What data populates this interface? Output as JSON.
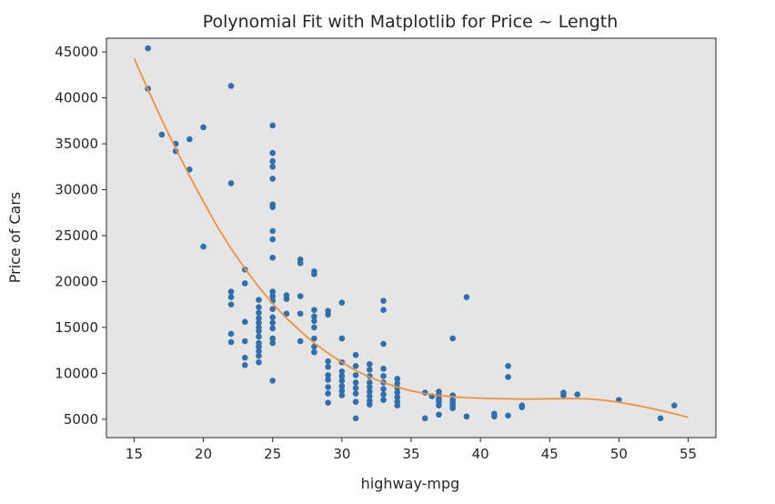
{
  "chart_data": {
    "type": "scatter",
    "title": "Polynomial Fit with Matplotlib for Price ~ Length",
    "xlabel": "highway-mpg",
    "ylabel": "Price of Cars",
    "xlim": [
      13,
      57
    ],
    "ylim": [
      3000,
      46500
    ],
    "xticks": [
      15,
      20,
      25,
      30,
      35,
      40,
      45,
      50,
      55
    ],
    "xtick_labels": [
      "15",
      "20",
      "25",
      "30",
      "35",
      "40",
      "45",
      "50",
      "55"
    ],
    "yticks": [
      5000,
      10000,
      15000,
      20000,
      25000,
      30000,
      35000,
      40000,
      45000
    ],
    "ytick_labels": [
      "5000",
      "10000",
      "15000",
      "20000",
      "25000",
      "30000",
      "35000",
      "40000",
      "45000"
    ],
    "grid": false,
    "background": "#e5e5e5",
    "series": [
      {
        "kind": "scatter",
        "color": "#2f6fae",
        "points": [
          [
            16,
            45400
          ],
          [
            16,
            41000
          ],
          [
            17,
            36000
          ],
          [
            18,
            35000
          ],
          [
            18,
            34200
          ],
          [
            19,
            35500
          ],
          [
            19,
            32200
          ],
          [
            20,
            36800
          ],
          [
            20,
            23800
          ],
          [
            22,
            41300
          ],
          [
            22,
            30700
          ],
          [
            22,
            18900
          ],
          [
            22,
            18300
          ],
          [
            22,
            17500
          ],
          [
            22,
            14300
          ],
          [
            22,
            13400
          ],
          [
            23,
            21300
          ],
          [
            23,
            19800
          ],
          [
            23,
            15600
          ],
          [
            23,
            13500
          ],
          [
            23,
            11700
          ],
          [
            23,
            10900
          ],
          [
            24,
            18000
          ],
          [
            24,
            17200
          ],
          [
            24,
            16600
          ],
          [
            24,
            16000
          ],
          [
            24,
            15500
          ],
          [
            24,
            15000
          ],
          [
            24,
            14600
          ],
          [
            24,
            14000
          ],
          [
            24,
            13300
          ],
          [
            24,
            12900
          ],
          [
            24,
            12400
          ],
          [
            24,
            11900
          ],
          [
            24,
            11200
          ],
          [
            25,
            37000
          ],
          [
            25,
            34000
          ],
          [
            25,
            33100
          ],
          [
            25,
            32500
          ],
          [
            25,
            31200
          ],
          [
            25,
            28400
          ],
          [
            25,
            28100
          ],
          [
            25,
            25500
          ],
          [
            25,
            24600
          ],
          [
            25,
            22600
          ],
          [
            25,
            18900
          ],
          [
            25,
            18400
          ],
          [
            25,
            17900
          ],
          [
            25,
            17000
          ],
          [
            25,
            16100
          ],
          [
            25,
            15500
          ],
          [
            25,
            14900
          ],
          [
            25,
            13800
          ],
          [
            25,
            13300
          ],
          [
            25,
            9200
          ],
          [
            26,
            18500
          ],
          [
            26,
            18100
          ],
          [
            26,
            16500
          ],
          [
            27,
            22400
          ],
          [
            27,
            22000
          ],
          [
            27,
            18400
          ],
          [
            27,
            16500
          ],
          [
            27,
            13500
          ],
          [
            28,
            21100
          ],
          [
            28,
            20800
          ],
          [
            28,
            16900
          ],
          [
            28,
            16200
          ],
          [
            28,
            15700
          ],
          [
            28,
            15000
          ],
          [
            28,
            13800
          ],
          [
            28,
            12900
          ],
          [
            28,
            12300
          ],
          [
            29,
            16800
          ],
          [
            29,
            16400
          ],
          [
            29,
            11300
          ],
          [
            29,
            10700
          ],
          [
            29,
            9800
          ],
          [
            29,
            9300
          ],
          [
            29,
            8500
          ],
          [
            29,
            7800
          ],
          [
            29,
            6800
          ],
          [
            30,
            17700
          ],
          [
            30,
            13800
          ],
          [
            30,
            11200
          ],
          [
            30,
            10200
          ],
          [
            30,
            9700
          ],
          [
            30,
            9200
          ],
          [
            30,
            8600
          ],
          [
            30,
            8100
          ],
          [
            30,
            7600
          ],
          [
            31,
            12000
          ],
          [
            31,
            10800
          ],
          [
            31,
            9800
          ],
          [
            31,
            9000
          ],
          [
            31,
            8400
          ],
          [
            31,
            7800
          ],
          [
            31,
            6900
          ],
          [
            31,
            5100
          ],
          [
            32,
            11000
          ],
          [
            32,
            10400
          ],
          [
            32,
            9700
          ],
          [
            32,
            9000
          ],
          [
            32,
            8500
          ],
          [
            32,
            8000
          ],
          [
            32,
            7500
          ],
          [
            32,
            7000
          ],
          [
            32,
            6600
          ],
          [
            33,
            17900
          ],
          [
            33,
            16900
          ],
          [
            33,
            13200
          ],
          [
            33,
            10500
          ],
          [
            33,
            9700
          ],
          [
            33,
            9000
          ],
          [
            33,
            8300
          ],
          [
            33,
            7700
          ],
          [
            33,
            7100
          ],
          [
            34,
            9400
          ],
          [
            34,
            8900
          ],
          [
            34,
            8400
          ],
          [
            34,
            7900
          ],
          [
            34,
            7400
          ],
          [
            34,
            6900
          ],
          [
            34,
            6500
          ],
          [
            36,
            7900
          ],
          [
            36,
            5100
          ],
          [
            36.5,
            7500
          ],
          [
            37,
            8000
          ],
          [
            37,
            7600
          ],
          [
            37,
            7200
          ],
          [
            37,
            6900
          ],
          [
            37,
            6500
          ],
          [
            37,
            5500
          ],
          [
            38,
            13800
          ],
          [
            38,
            7600
          ],
          [
            38,
            7100
          ],
          [
            38,
            6800
          ],
          [
            38,
            6500
          ],
          [
            38,
            6200
          ],
          [
            39,
            18300
          ],
          [
            39,
            5300
          ],
          [
            41,
            5600
          ],
          [
            41,
            5300
          ],
          [
            42,
            10800
          ],
          [
            42,
            9600
          ],
          [
            42,
            5400
          ],
          [
            43,
            6500
          ],
          [
            43,
            6300
          ],
          [
            46,
            7900
          ],
          [
            46,
            7600
          ],
          [
            47,
            7700
          ],
          [
            50,
            7100
          ],
          [
            53,
            5100
          ],
          [
            54,
            6500
          ]
        ]
      },
      {
        "kind": "line",
        "color": "#f0913b",
        "x": [
          15,
          16,
          17,
          18,
          19,
          20,
          21,
          22,
          23,
          24,
          25,
          26,
          27,
          28,
          29,
          30,
          31,
          32,
          33,
          34,
          35,
          36,
          37,
          38,
          39,
          40,
          41,
          42,
          43,
          44,
          45,
          46,
          47,
          48,
          49,
          50,
          51,
          52,
          53,
          54,
          55
        ],
        "y": [
          44300,
          40900,
          37600,
          34500,
          31500,
          28700,
          26000,
          23600,
          21400,
          19400,
          17600,
          16000,
          14600,
          13300,
          12200,
          11200,
          10300,
          9600,
          9000,
          8500,
          8100,
          7800,
          7600,
          7450,
          7350,
          7300,
          7250,
          7220,
          7200,
          7200,
          7230,
          7250,
          7250,
          7200,
          7050,
          6850,
          6600,
          6300,
          5950,
          5600,
          5200
        ]
      }
    ]
  }
}
